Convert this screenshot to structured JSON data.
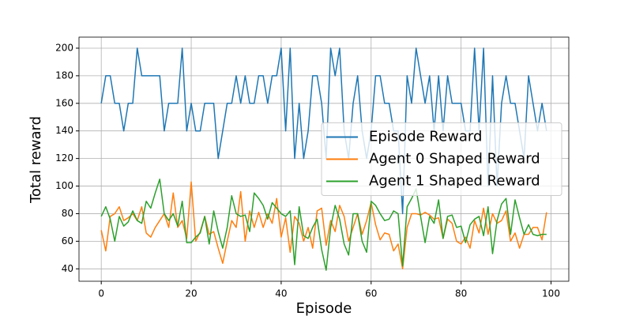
{
  "chart_data": {
    "type": "line",
    "x_label": "Episode",
    "y_label": "Total reward",
    "x": [
      0,
      1,
      2,
      3,
      4,
      5,
      6,
      7,
      8,
      9,
      10,
      11,
      12,
      13,
      14,
      15,
      16,
      17,
      18,
      19,
      20,
      21,
      22,
      23,
      24,
      25,
      26,
      27,
      28,
      29,
      30,
      31,
      32,
      33,
      34,
      35,
      36,
      37,
      38,
      39,
      40,
      41,
      42,
      43,
      44,
      45,
      46,
      47,
      48,
      49,
      50,
      51,
      52,
      53,
      54,
      55,
      56,
      57,
      58,
      59,
      60,
      61,
      62,
      63,
      64,
      65,
      66,
      67,
      68,
      69,
      70,
      71,
      72,
      73,
      74,
      75,
      76,
      77,
      78,
      79,
      80,
      81,
      82,
      83,
      84,
      85,
      86,
      87,
      88,
      89,
      90,
      91,
      92,
      93,
      94,
      95,
      96,
      97,
      98,
      99
    ],
    "series": [
      {
        "name": "Episode Reward",
        "color": "#1f77b4",
        "values": [
          160,
          180,
          180,
          160,
          160,
          140,
          160,
          160,
          200,
          180,
          180,
          180,
          180,
          180,
          140,
          160,
          160,
          160,
          200,
          140,
          160,
          140,
          140,
          160,
          160,
          160,
          120,
          140,
          160,
          160,
          180,
          160,
          180,
          160,
          160,
          180,
          180,
          160,
          180,
          180,
          200,
          140,
          200,
          120,
          160,
          120,
          140,
          180,
          180,
          160,
          120,
          200,
          180,
          200,
          140,
          120,
          160,
          180,
          140,
          120,
          140,
          180,
          180,
          160,
          160,
          140,
          140,
          80,
          180,
          160,
          200,
          180,
          160,
          180,
          140,
          180,
          140,
          180,
          160,
          160,
          160,
          140,
          140,
          200,
          140,
          200,
          100,
          180,
          100,
          160,
          180,
          160,
          160,
          140,
          120,
          180,
          160,
          140,
          160,
          140
        ]
      },
      {
        "name": "Agent 0 Shaped Reward",
        "color": "#ff7f0e",
        "values": [
          68,
          53,
          78,
          80,
          85,
          75,
          77,
          80,
          75,
          85,
          66,
          63,
          70,
          75,
          80,
          70,
          95,
          70,
          75,
          62,
          103,
          60,
          67,
          78,
          65,
          67,
          55,
          44,
          60,
          75,
          70,
          96,
          60,
          82,
          70,
          81,
          70,
          80,
          73,
          91,
          63,
          77,
          52,
          78,
          73,
          60,
          70,
          55,
          82,
          84,
          57,
          75,
          67,
          86,
          78,
          60,
          70,
          80,
          65,
          75,
          88,
          72,
          61,
          66,
          65,
          53,
          58,
          40,
          70,
          80,
          80,
          79,
          81,
          79,
          76,
          77,
          62,
          76,
          73,
          60,
          58,
          63,
          55,
          75,
          66,
          84,
          65,
          80,
          73,
          75,
          82,
          60,
          66,
          55,
          65,
          65,
          70,
          70,
          61,
          81
        ]
      },
      {
        "name": "Agent 1 Shaped Reward",
        "color": "#2ca02c",
        "values": [
          78,
          85,
          76,
          60,
          78,
          71,
          74,
          82,
          75,
          73,
          89,
          84,
          95,
          105,
          80,
          75,
          80,
          71,
          89,
          59,
          59,
          63,
          66,
          78,
          58,
          82,
          67,
          55,
          70,
          93,
          80,
          78,
          79,
          67,
          95,
          91,
          86,
          76,
          88,
          84,
          80,
          78,
          82,
          43,
          85,
          64,
          62,
          70,
          76,
          54,
          39,
          70,
          86,
          76,
          58,
          50,
          80,
          80,
          60,
          52,
          89,
          86,
          80,
          75,
          76,
          82,
          80,
          42,
          85,
          91,
          98,
          78,
          59,
          78,
          73,
          90,
          62,
          78,
          79,
          70,
          71,
          59,
          72,
          76,
          78,
          64,
          85,
          51,
          75,
          87,
          91,
          65,
          90,
          77,
          65,
          72,
          65,
          64,
          65,
          65
        ]
      }
    ],
    "xlim": [
      -4.95,
      103.95
    ],
    "ylim": [
      31,
      208
    ],
    "xticks": [
      0,
      20,
      40,
      60,
      80,
      100
    ],
    "yticks": [
      40,
      60,
      80,
      100,
      120,
      140,
      160,
      180,
      200
    ],
    "grid": true,
    "legend": "center right"
  }
}
